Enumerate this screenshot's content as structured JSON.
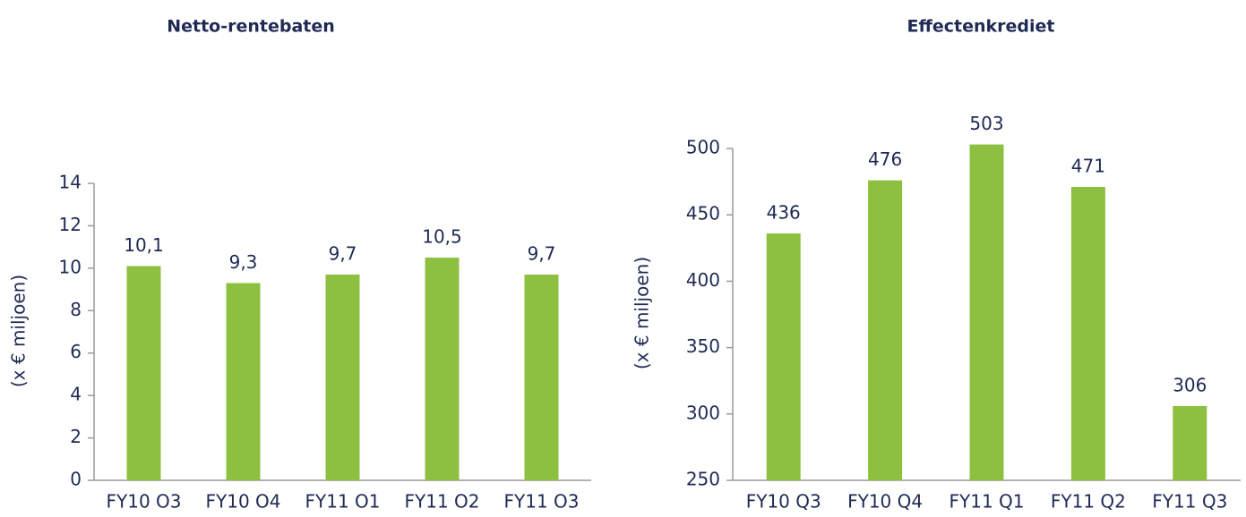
{
  "chart_data": [
    {
      "type": "bar",
      "title": "Netto-rentebaten",
      "y_label": "(x € miljoen)",
      "categories": [
        "FY10 O3",
        "FY10 O4",
        "FY11 O1",
        "FY11 O2",
        "FY11 O3"
      ],
      "values": [
        10.1,
        9.3,
        9.7,
        10.5,
        9.7
      ],
      "value_labels": [
        "10,1",
        "9,3",
        "9,7",
        "10,5",
        "9,7"
      ],
      "color": "#8dc040",
      "ylim": [
        0,
        14
      ],
      "yticks": [
        0,
        2,
        4,
        6,
        8,
        10,
        12,
        14
      ],
      "grid": false
    },
    {
      "type": "bar",
      "title": "Effectenkrediet",
      "y_label": "(x € miljoen)",
      "categories": [
        "FY10 Q3",
        "FY10 Q4",
        "FY11 Q1",
        "FY11 Q2",
        "FY11 Q3"
      ],
      "values": [
        436,
        476,
        503,
        471,
        306
      ],
      "color": "#8dc040",
      "ylim": [
        250,
        500
      ],
      "yticks": [
        250,
        300,
        350,
        400,
        450,
        500
      ],
      "grid": false
    }
  ]
}
